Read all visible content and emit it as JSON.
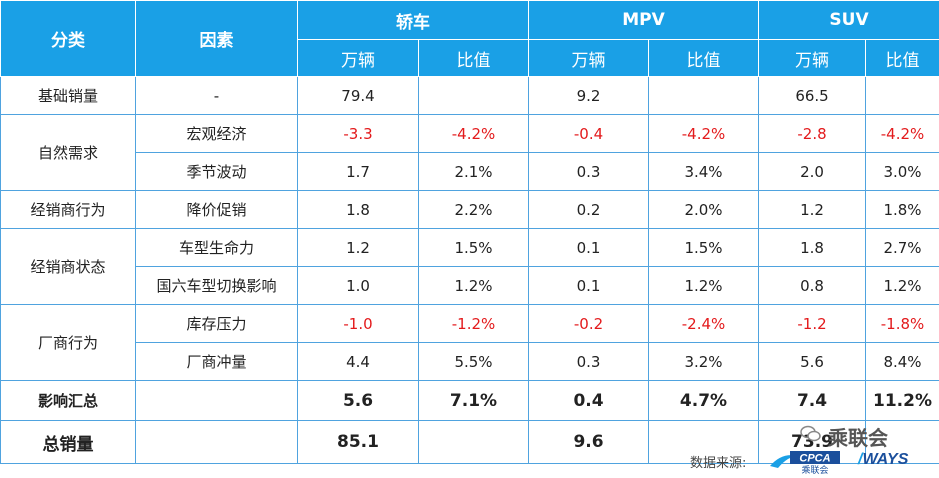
{
  "header": {
    "category": "分类",
    "factor": "因素",
    "groups": [
      "轿车",
      "MPV",
      "SUV"
    ],
    "units": [
      "万辆",
      "比值",
      "万辆",
      "比值",
      "万辆",
      "比值"
    ]
  },
  "rows": {
    "base": {
      "category": "基础销量",
      "factor": "-",
      "values": [
        "79.4",
        "",
        "9.2",
        "",
        "66.5",
        ""
      ]
    },
    "macro": {
      "category": "自然需求",
      "factor": "宏观经济",
      "values": [
        "-3.3",
        "-4.2%",
        "-0.4",
        "-4.2%",
        "-2.8",
        "-4.2%"
      ]
    },
    "season": {
      "factor": "季节波动",
      "values": [
        "1.7",
        "2.1%",
        "0.3",
        "3.4%",
        "2.0",
        "3.0%"
      ]
    },
    "price": {
      "category": "经销商行为",
      "factor": "降价促销",
      "values": [
        "1.8",
        "2.2%",
        "0.2",
        "2.0%",
        "1.2",
        "1.8%"
      ]
    },
    "lifecycle": {
      "category": "经销商状态",
      "factor": "车型生命力",
      "values": [
        "1.2",
        "1.5%",
        "0.1",
        "1.5%",
        "1.8",
        "2.7%"
      ]
    },
    "guo6": {
      "factor": "国六车型切换影响",
      "values": [
        "1.0",
        "1.2%",
        "0.1",
        "1.2%",
        "0.8",
        "1.2%"
      ]
    },
    "inventory": {
      "category": "厂商行为",
      "factor": "库存压力",
      "values": [
        "-1.0",
        "-1.2%",
        "-0.2",
        "-2.4%",
        "-1.2",
        "-1.8%"
      ]
    },
    "push": {
      "factor": "厂商冲量",
      "values": [
        "4.4",
        "5.5%",
        "0.3",
        "3.2%",
        "5.6",
        "8.4%"
      ]
    },
    "summary": {
      "category": "影响汇总",
      "values": [
        "5.6",
        "7.1%",
        "0.4",
        "4.7%",
        "7.4",
        "11.2%"
      ]
    },
    "total": {
      "category": "总销量",
      "values": [
        "85.1",
        "",
        "9.6",
        "",
        "73.9",
        ""
      ]
    }
  },
  "footer": {
    "source_label": "数据来源:",
    "cpca_logo": "CPCA",
    "cpca_sub": "乘联会",
    "ways_logo": "WAYS"
  },
  "watermark": "乘联会",
  "colors": {
    "header_bg": "#1aa0e6",
    "border": "#4fa3df",
    "negative": "#e31a1c"
  }
}
